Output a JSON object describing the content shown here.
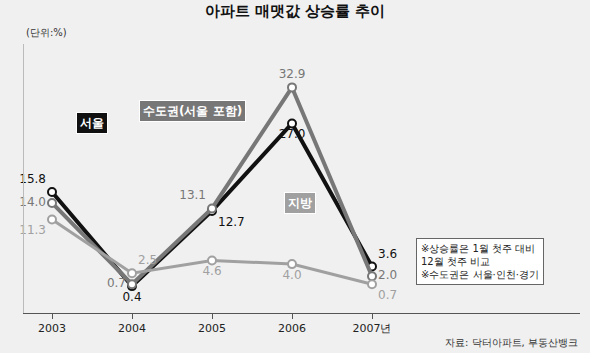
{
  "chart_data": {
    "type": "line",
    "title": "아파트 매맷값 상승률 추이",
    "y_label": "(단위:%)",
    "categories": [
      "2003",
      "2004",
      "2005",
      "2006",
      "2007년"
    ],
    "series": [
      {
        "name": "서울",
        "color": "#111111",
        "values": [
          15.8,
          0.4,
          12.7,
          27.0,
          3.6
        ],
        "value_labels": [
          "15.8",
          "0.4",
          "12.7",
          "27.0",
          "3.6"
        ]
      },
      {
        "name": "수도권(서울 포함)",
        "color": "#777777",
        "values": [
          14.0,
          0.7,
          13.1,
          32.9,
          2.0
        ],
        "value_labels": [
          "14.0",
          "0.7",
          "13.1",
          "32.9",
          "2.0"
        ]
      },
      {
        "name": "지방",
        "color": "#a0a0a0",
        "values": [
          11.3,
          2.5,
          4.6,
          4.0,
          0.7
        ],
        "value_labels": [
          "11.3",
          "2.5",
          "4.6",
          "4.0",
          "0.7"
        ]
      }
    ],
    "ylim": [
      -4,
      40
    ],
    "yticks": [],
    "tick_labels": "x",
    "data_labels": true,
    "marker": "circle",
    "grid": false,
    "notes": [
      "※상승률은 1월 첫주 대비",
      "12월 첫주 비교",
      "※수도권은 서울·인천·경기"
    ],
    "source": "자료: 닥터아파트, 부동산뱅크"
  }
}
